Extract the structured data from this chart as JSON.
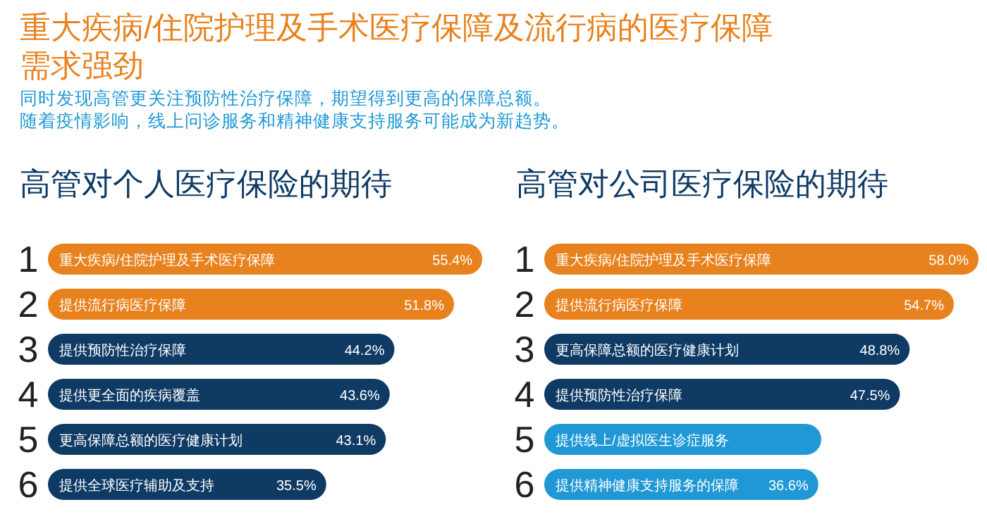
{
  "chart_data": [
    {
      "type": "other",
      "title": "重大疾病/住院护理及手术医疗保障及流行病的医疗保障需求强劲",
      "subtitle": "同时发现高管更关注预防性治疗保障，期望得到更高的保障总额。",
      "annotations": [
        "随着疫情影响，线上问诊服务和精神健康支持服务可能成为新趋势。"
      ]
    },
    {
      "type": "bar",
      "orientation": "horizontal",
      "title": "高管对个人医疗保险的期待",
      "categories": [
        "重大疾病/住院护理及手术医疗保障",
        "提供流行病医疗保障",
        "提供预防性治疗保障",
        "提供更全面的疾病覆盖",
        "更高保障总额的医疗健康计划",
        "提供全球医疗辅助及支持"
      ],
      "values": [
        55.4,
        51.8,
        44.2,
        43.6,
        43.1,
        35.5
      ],
      "colors": [
        "#e8821e",
        "#e8821e",
        "#0e3a64",
        "#0e3a64",
        "#0e3a64",
        "#0e3a64"
      ],
      "value_labels": [
        "55.4%",
        "51.8%",
        "44.2%",
        "43.6%",
        "43.1%",
        "35.5%"
      ],
      "annotations": [
        "1",
        "2",
        "3",
        "4",
        "5",
        "6"
      ]
    },
    {
      "type": "bar",
      "orientation": "horizontal",
      "title": "高管对公司医疗保险的期待",
      "categories": [
        "重大疾病/住院护理及手术医疗保障",
        "提供流行病医疗保障",
        "更高保障总额的医疗健康计划",
        "提供预防性治疗保障",
        "提供线上/虚拟医生诊症服务",
        "提供精神健康支持服务的保障"
      ],
      "values": [
        58.0,
        54.7,
        48.8,
        47.5,
        37,
        36.6
      ],
      "colors": [
        "#e8821e",
        "#e8821e",
        "#0e3a64",
        "#0e3a64",
        "#1f98d5",
        "#1f98d5"
      ],
      "value_labels": [
        "58.0%",
        "54.7%",
        "48.8%",
        "47.5%",
        null,
        "36.6%"
      ],
      "annotations": [
        "1",
        "2",
        "3",
        "4",
        "5",
        "6"
      ]
    }
  ]
}
